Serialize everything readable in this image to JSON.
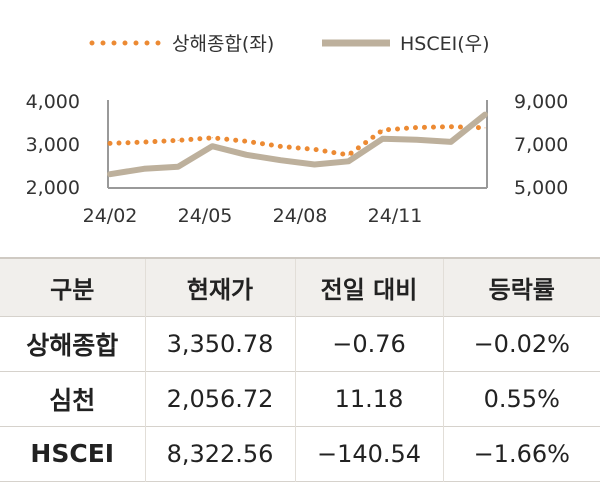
{
  "chart_data": {
    "type": "line",
    "x_ticks": [
      "24/02",
      "24/05",
      "24/08",
      "24/11"
    ],
    "left_axis": {
      "ticks": [
        "2,000",
        "3,000",
        "4,000"
      ],
      "range": [
        2000,
        4000
      ]
    },
    "right_axis": {
      "ticks": [
        "5,000",
        "7,000",
        "9,000"
      ],
      "range": [
        5000,
        9000
      ]
    },
    "legend_position": "top",
    "series": [
      {
        "name": "상해종합(좌)",
        "axis": "left",
        "style": "dotted",
        "color": "#ec8a33",
        "x": [
          "24/02",
          "24/03",
          "24/04",
          "24/05",
          "24/06",
          "24/07",
          "24/08",
          "24/09",
          "24/10",
          "24/11",
          "24/12",
          "25/01"
        ],
        "values": [
          2990,
          3020,
          3060,
          3120,
          3040,
          2920,
          2850,
          2720,
          3300,
          3360,
          3380,
          3350
        ]
      },
      {
        "name": "HSCEI(우)",
        "axis": "right",
        "style": "solid",
        "color": "#bdb09c",
        "x": [
          "24/02",
          "24/03",
          "24/04",
          "24/05",
          "24/06",
          "24/07",
          "24/08",
          "24/09",
          "24/10",
          "24/11",
          "24/12",
          "25/01"
        ],
        "values": [
          5550,
          5800,
          5900,
          6850,
          6450,
          6200,
          6000,
          6150,
          7200,
          7150,
          7050,
          8320
        ]
      }
    ]
  },
  "table": {
    "headers": [
      "구분",
      "현재가",
      "전일 대비",
      "등락률"
    ],
    "rows": [
      {
        "name": "상해종합",
        "price": "3,350.78",
        "change": "−0.76",
        "rate": "−0.02%"
      },
      {
        "name": "심천",
        "price": "2,056.72",
        "change": "11.18",
        "rate": "0.55%"
      },
      {
        "name": "HSCEI",
        "price": "8,322.56",
        "change": "−140.54",
        "rate": "−1.66%"
      }
    ]
  }
}
